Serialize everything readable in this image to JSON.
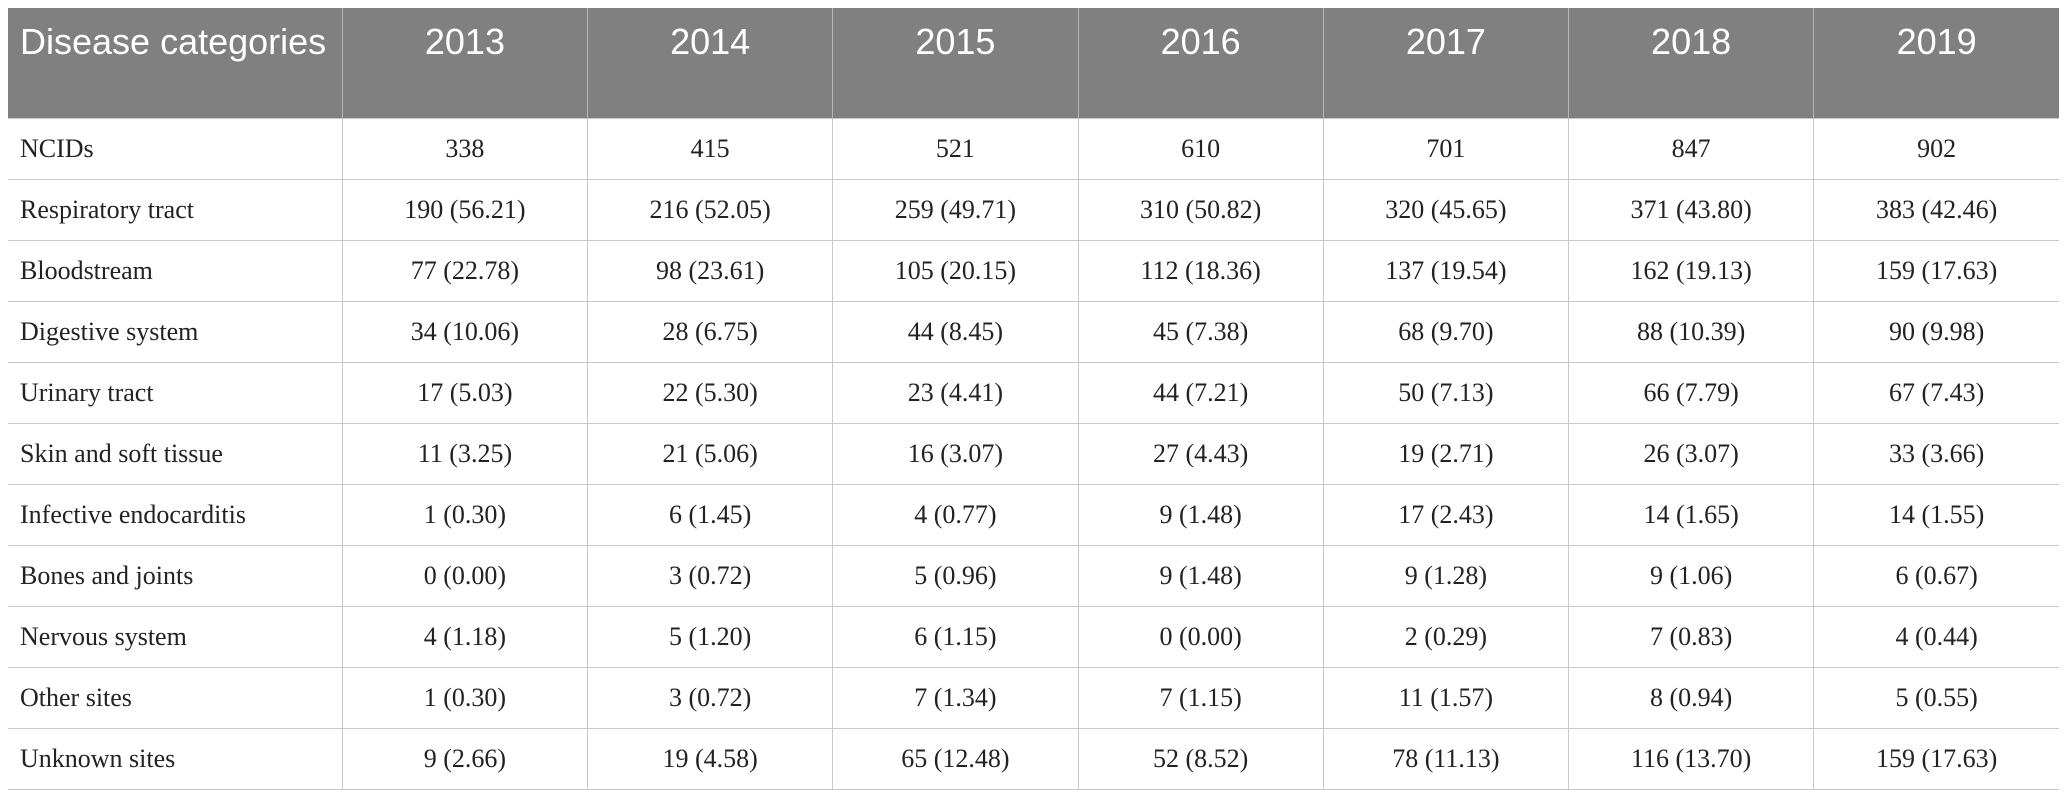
{
  "table": {
    "header": {
      "label": "Disease categories",
      "years": [
        "2013",
        "2014",
        "2015",
        "2016",
        "2017",
        "2018",
        "2019"
      ]
    },
    "rows": [
      {
        "label": "NCIDs",
        "cells": [
          "338",
          "415",
          "521",
          "610",
          "701",
          "847",
          "902"
        ]
      },
      {
        "label": "Respiratory tract",
        "cells": [
          "190 (56.21)",
          "216 (52.05)",
          "259 (49.71)",
          "310 (50.82)",
          "320 (45.65)",
          "371 (43.80)",
          "383 (42.46)"
        ]
      },
      {
        "label": "Bloodstream",
        "cells": [
          "77 (22.78)",
          "98 (23.61)",
          "105 (20.15)",
          "112 (18.36)",
          "137 (19.54)",
          "162 (19.13)",
          "159 (17.63)"
        ]
      },
      {
        "label": "Digestive system",
        "cells": [
          "34 (10.06)",
          "28 (6.75)",
          "44 (8.45)",
          "45 (7.38)",
          "68 (9.70)",
          "88 (10.39)",
          "90 (9.98)"
        ]
      },
      {
        "label": "Urinary tract",
        "cells": [
          "17 (5.03)",
          "22 (5.30)",
          "23 (4.41)",
          "44 (7.21)",
          "50 (7.13)",
          "66 (7.79)",
          "67 (7.43)"
        ]
      },
      {
        "label": "Skin and soft tissue",
        "cells": [
          "11 (3.25)",
          "21 (5.06)",
          "16 (3.07)",
          "27 (4.43)",
          "19 (2.71)",
          "26 (3.07)",
          "33 (3.66)"
        ]
      },
      {
        "label": "Infective endocarditis",
        "cells": [
          "1 (0.30)",
          "6 (1.45)",
          "4 (0.77)",
          "9 (1.48)",
          "17 (2.43)",
          "14 (1.65)",
          "14 (1.55)"
        ]
      },
      {
        "label": "Bones and joints",
        "cells": [
          "0 (0.00)",
          "3 (0.72)",
          "5 (0.96)",
          "9 (1.48)",
          "9 (1.28)",
          "9 (1.06)",
          "6 (0.67)"
        ]
      },
      {
        "label": "Nervous system",
        "cells": [
          "4 (1.18)",
          "5 (1.20)",
          "6 (1.15)",
          "0 (0.00)",
          "2 (0.29)",
          "7 (0.83)",
          "4 (0.44)"
        ]
      },
      {
        "label": "Other sites",
        "cells": [
          "1 (0.30)",
          "3 (0.72)",
          "7 (1.34)",
          "7 (1.15)",
          "11 (1.57)",
          "8 (0.94)",
          "5 (0.55)"
        ]
      },
      {
        "label": "Unknown sites",
        "cells": [
          "9 (2.66)",
          "19 (4.58)",
          "65 (12.48)",
          "52 (8.52)",
          "78 (11.13)",
          "116 (13.70)",
          "159 (17.63)"
        ]
      }
    ]
  },
  "colors": {
    "header_bg": "#808080",
    "header_text": "#ffffff",
    "grid": "#c9c9c9"
  }
}
